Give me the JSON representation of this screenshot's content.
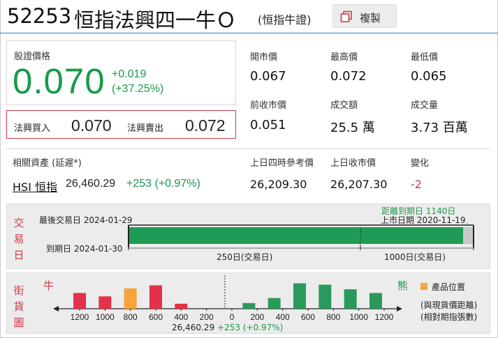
{
  "header": {
    "code": "52253",
    "name": "恒指法興四一牛Ｏ",
    "sub": "(恒指牛證)",
    "copy_label": "複製",
    "copy_icon": "copy-icon"
  },
  "price": {
    "label": "股證價格",
    "value": "0.070",
    "change": "+0.019",
    "change_pct": "(+37.25%)"
  },
  "bid_ask": {
    "bid_label": "法興買入",
    "bid": "0.070",
    "ask_label": "法興賣出",
    "ask": "0.072"
  },
  "stats": [
    {
      "label": "開市價",
      "value": "0.067"
    },
    {
      "label": "最高價",
      "value": "0.072"
    },
    {
      "label": "最低價",
      "value": "0.065"
    },
    {
      "label": "前收市價",
      "value": "0.051"
    },
    {
      "label": "成交額",
      "value": "25.5 萬"
    },
    {
      "label": "成交量",
      "value": "3.73 百萬"
    }
  ],
  "underlying": {
    "label": "相關資產 (延遲*)",
    "link": "HSI 恒指",
    "value": "26,460.29",
    "change": "+253 (+0.97%)",
    "stats": [
      {
        "label": "上日四時參考價",
        "value": "26,209.30"
      },
      {
        "label": "上日收市價",
        "value": "26,207.30"
      },
      {
        "label": "變化",
        "value": "-2"
      }
    ]
  },
  "trading_day": {
    "side_label": [
      "交",
      "易",
      "日"
    ],
    "last_trade": "最後交易日 2024-01-29",
    "expiry": "到期日 2024-01-30",
    "days_to_expiry": "距離到期日 1140日",
    "listing_date": "上市日期 2020-11-19",
    "scale_left": "250日(交易日)",
    "scale_right": "1000日(交易日)",
    "elapsed_fraction": 0.97
  },
  "street": {
    "side_label": [
      "街",
      "貨",
      "圖"
    ],
    "bull_label": "牛",
    "bear_label": "熊",
    "legend_label": "產品位置",
    "note_1": "(與現貨價距離)",
    "note_2": "(相對期指張數)",
    "underlying_text": "26,460.29",
    "underlying_change": "+253 (+0.97%)",
    "ticks": [
      "1200",
      "1000",
      "800",
      "600",
      "400",
      "200",
      "0",
      "200",
      "400",
      "600",
      "800",
      "1000",
      "1200"
    ],
    "bull_bars": [
      {
        "tick": "1200",
        "level": 0.47
      },
      {
        "tick": "1000",
        "level": 0.37
      },
      {
        "tick": "800",
        "level": 0.61
      },
      {
        "tick": "600",
        "level": 0.7
      },
      {
        "tick": "400",
        "level": 0.15
      }
    ],
    "bear_bars": [
      {
        "tick": "200",
        "level": 0.17
      },
      {
        "tick": "400",
        "level": 0.32
      },
      {
        "tick": "600",
        "level": 0.76
      },
      {
        "tick": "800",
        "level": 0.72
      },
      {
        "tick": "1000",
        "level": 0.58
      },
      {
        "tick": "1200",
        "level": 0.47
      }
    ],
    "product_tick": "800",
    "colors": {
      "bull": "#e5304a",
      "bear": "#2a9a5c",
      "product": "#f7a43a"
    }
  }
}
